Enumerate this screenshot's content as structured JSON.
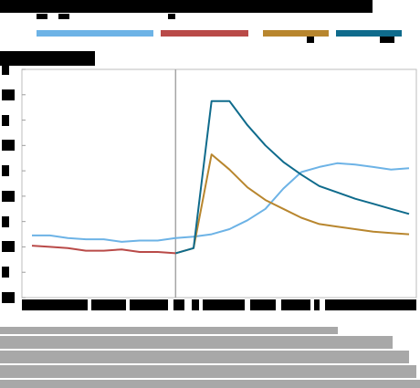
{
  "header": {
    "title": "",
    "subtitle": ""
  },
  "legend": {
    "items": [
      {
        "name": "",
        "color": "#6db3e6"
      },
      {
        "name": "",
        "color": "#b94a48"
      },
      {
        "name": "",
        "color": "#b8862e"
      },
      {
        "name": "",
        "color": "#0f6b8c"
      }
    ]
  },
  "note": "",
  "chart_data": {
    "type": "line",
    "title": "",
    "xlabel": "",
    "ylabel": "",
    "x": [
      0,
      1,
      2,
      3,
      4,
      5,
      6,
      7,
      8,
      9,
      10,
      11,
      12,
      13,
      14,
      15,
      16,
      17,
      18,
      19,
      20,
      21
    ],
    "ylim": [
      0,
      9
    ],
    "yticks": [
      0,
      1,
      2,
      3,
      4,
      5,
      6,
      7,
      8,
      9
    ],
    "grid": false,
    "legend_position": "top",
    "vline_x": 8,
    "series": [
      {
        "name": "",
        "color": "#6db3e6",
        "x": [
          0,
          1,
          2,
          3,
          4,
          5,
          6,
          7,
          8,
          9,
          10,
          11,
          12,
          13,
          14,
          15,
          16,
          17,
          18,
          19,
          20,
          21
        ],
        "values": [
          2.45,
          2.45,
          2.35,
          2.3,
          2.3,
          2.2,
          2.25,
          2.25,
          2.35,
          2.4,
          2.5,
          2.7,
          3.05,
          3.5,
          4.3,
          4.95,
          5.15,
          5.3,
          5.25,
          5.15,
          5.05,
          5.1
        ]
      },
      {
        "name": "",
        "color": "#b94a48",
        "x": [
          0,
          1,
          2,
          3,
          4,
          5,
          6,
          7,
          8
        ],
        "values": [
          2.05,
          2.0,
          1.95,
          1.85,
          1.85,
          1.9,
          1.8,
          1.8,
          1.75
        ]
      },
      {
        "name": "",
        "color": "#b8862e",
        "x": [
          8,
          9,
          10,
          11,
          12,
          13,
          14,
          15,
          16,
          17,
          18,
          19,
          20,
          21
        ],
        "values": [
          1.75,
          1.95,
          5.65,
          5.05,
          4.35,
          3.85,
          3.5,
          3.15,
          2.9,
          2.8,
          2.7,
          2.6,
          2.55,
          2.5
        ]
      },
      {
        "name": "",
        "color": "#0f6b8c",
        "x": [
          8,
          9,
          10,
          11,
          12,
          13,
          14,
          15,
          16,
          17,
          18,
          19,
          20,
          21
        ],
        "values": [
          1.75,
          1.95,
          7.75,
          7.75,
          6.8,
          6.0,
          5.35,
          4.85,
          4.4,
          4.15,
          3.9,
          3.7,
          3.5,
          3.3
        ]
      }
    ]
  }
}
